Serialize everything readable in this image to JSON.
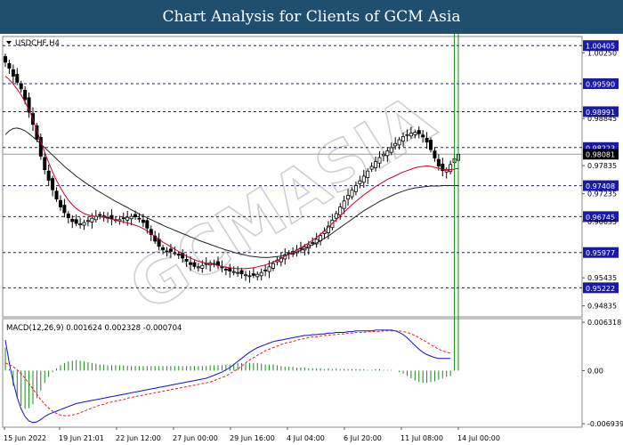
{
  "page": {
    "title": "Chart Analysis for Clients of GCM Asia",
    "watermark": "GCMASIA"
  },
  "chart_data": [
    {
      "type": "candlestick",
      "symbol_label": "USDCHF,H4",
      "ylim": [
        0.946,
        1.006
      ],
      "y_ticks": [
        1.0025,
        0.98845,
        0.97835,
        0.97235,
        0.96635,
        0.95435,
        0.94835
      ],
      "x_ticks": [
        "15 Jun 2022",
        "19 Jun 21:01",
        "22 Jun 12:00",
        "27 Jun 00:00",
        "29 Jun 16:00",
        "4 Jul 04:00",
        "6 Jul 20:00",
        "11 Jul 08:00",
        "14 Jul 00:00"
      ],
      "levels": [
        1.00405,
        0.9959,
        0.98991,
        0.98223,
        0.97408,
        0.96745,
        0.95977,
        0.95222
      ],
      "current_price": 0.98081,
      "colors": {
        "up": "#ffffff",
        "down": "#000000",
        "wick": "#000000",
        "ma_fast": "#c8002a",
        "ma_slow": "#222222",
        "level_line": "#1a1aa8",
        "level_box": "#1a1aa8",
        "price_box": "#000000"
      },
      "close": [
        1.0005,
        0.9992,
        0.9975,
        0.9962,
        0.9948,
        0.9925,
        0.9898,
        0.9872,
        0.984,
        0.9804,
        0.9775,
        0.9752,
        0.9732,
        0.9712,
        0.9695,
        0.9683,
        0.9672,
        0.9664,
        0.966,
        0.9659,
        0.9662,
        0.9666,
        0.9671,
        0.9675,
        0.9677,
        0.9676,
        0.9673,
        0.967,
        0.9668,
        0.9668,
        0.967,
        0.9673,
        0.9675,
        0.9674,
        0.967,
        0.9662,
        0.965,
        0.9636,
        0.9622,
        0.9611,
        0.9604,
        0.9601,
        0.96,
        0.9597,
        0.9592,
        0.9586,
        0.9579,
        0.9572,
        0.9568,
        0.9567,
        0.957,
        0.9574,
        0.9575,
        0.9574,
        0.957,
        0.9565,
        0.9561,
        0.9558,
        0.9557,
        0.9555,
        0.9552,
        0.955,
        0.9548,
        0.9549,
        0.9551,
        0.9555,
        0.956,
        0.9567,
        0.9574,
        0.9581,
        0.9587,
        0.9593,
        0.9597,
        0.96,
        0.9603,
        0.9606,
        0.961,
        0.9614,
        0.9619,
        0.9626,
        0.9634,
        0.9643,
        0.9654,
        0.9667,
        0.9681,
        0.9695,
        0.9708,
        0.972,
        0.9731,
        0.9741,
        0.9751,
        0.9761,
        0.9772,
        0.9782,
        0.9792,
        0.9801,
        0.9808,
        0.9815,
        0.9822,
        0.9831,
        0.9839,
        0.9846,
        0.985,
        0.9853,
        0.9855,
        0.9852,
        0.9845,
        0.9834,
        0.9818,
        0.98,
        0.9783,
        0.9773,
        0.9774,
        0.9786,
        0.9798,
        0.9808
      ],
      "ma_fast": [
        0.9975,
        0.9968,
        0.9958,
        0.9947,
        0.9935,
        0.992,
        0.9903,
        0.9883,
        0.986,
        0.9835,
        0.9812,
        0.979,
        0.977,
        0.9752,
        0.9736,
        0.9722,
        0.971,
        0.97,
        0.9692,
        0.9686,
        0.9681,
        0.9678,
        0.9676,
        0.9675,
        0.9674,
        0.9673,
        0.9671,
        0.9669,
        0.9667,
        0.9665,
        0.9663,
        0.9661,
        0.9659,
        0.9656,
        0.9653,
        0.9649,
        0.9644,
        0.9638,
        0.9632,
        0.9626,
        0.962,
        0.9615,
        0.961,
        0.9605,
        0.96,
        0.9595,
        0.959,
        0.9586,
        0.9582,
        0.9579,
        0.9577,
        0.9575,
        0.9574,
        0.9572,
        0.957,
        0.9568,
        0.9566,
        0.9565,
        0.9564,
        0.9563,
        0.9563,
        0.9563,
        0.9564,
        0.9565,
        0.9567,
        0.9569,
        0.9571,
        0.9574,
        0.9577,
        0.9581,
        0.9585,
        0.959,
        0.9594,
        0.9598,
        0.9603,
        0.9608,
        0.9613,
        0.9618,
        0.9624,
        0.963,
        0.9637,
        0.9644,
        0.9652,
        0.966,
        0.9668,
        0.9676,
        0.9684,
        0.9692,
        0.97,
        0.9707,
        0.9714,
        0.9721,
        0.9727,
        0.9733,
        0.9739,
        0.9744,
        0.9749,
        0.9754,
        0.9758,
        0.9762,
        0.9766,
        0.977,
        0.9773,
        0.9776,
        0.9779,
        0.9781,
        0.9782,
        0.9783,
        0.9782,
        0.978,
        0.9778,
        0.9776,
        0.9775,
        0.9775,
        0.9776,
        0.9778
      ],
      "ma_slow": [
        0.985,
        0.9858,
        0.9863,
        0.9864,
        0.9862,
        0.9858,
        0.9852,
        0.9845,
        0.9838,
        0.983,
        0.9822,
        0.9814,
        0.9806,
        0.9798,
        0.979,
        0.9782,
        0.9775,
        0.9768,
        0.9761,
        0.9755,
        0.9749,
        0.9743,
        0.9738,
        0.9732,
        0.9727,
        0.9722,
        0.9717,
        0.9712,
        0.9707,
        0.9703,
        0.9698,
        0.9694,
        0.9689,
        0.9685,
        0.968,
        0.9676,
        0.9672,
        0.9668,
        0.9664,
        0.966,
        0.9656,
        0.9652,
        0.9649,
        0.9645,
        0.9642,
        0.9638,
        0.9635,
        0.9631,
        0.9628,
        0.9624,
        0.9621,
        0.9618,
        0.9615,
        0.9612,
        0.9609,
        0.9606,
        0.9603,
        0.9601,
        0.9598,
        0.9596,
        0.9594,
        0.9592,
        0.959,
        0.9589,
        0.9588,
        0.9587,
        0.9587,
        0.9587,
        0.9588,
        0.9589,
        0.959,
        0.9592,
        0.9594,
        0.9596,
        0.9599,
        0.9602,
        0.9606,
        0.961,
        0.9614,
        0.9618,
        0.9623,
        0.9628,
        0.9633,
        0.9639,
        0.9645,
        0.9651,
        0.9657,
        0.9663,
        0.9669,
        0.9675,
        0.9681,
        0.9687,
        0.9692,
        0.9697,
        0.9702,
        0.9707,
        0.9711,
        0.9715,
        0.9719,
        0.9723,
        0.9726,
        0.9729,
        0.9732,
        0.9734,
        0.9736,
        0.9737,
        0.9738,
        0.9739,
        0.974,
        0.974,
        0.974,
        0.9741,
        0.9741,
        0.9741,
        0.9741,
        0.9741
      ]
    },
    {
      "type": "macd",
      "label": "MACD(12,26,9) 0.001624 0.002328 -0.000704",
      "ylim": [
        -0.0074,
        0.0068
      ],
      "y_ticks": [
        "0.006318",
        "0.00",
        "-0.006939"
      ],
      "y_tick_values": [
        0.006318,
        0.0,
        -0.006939
      ],
      "colors": {
        "macd": "#1010c8",
        "signal": "#e02020",
        "hist": "#1a8a1a"
      },
      "macd": [
        0.004,
        0.001,
        -0.0015,
        -0.0035,
        -0.005,
        -0.006,
        -0.0066,
        -0.0068,
        -0.0067,
        -0.0064,
        -0.006,
        -0.0057,
        -0.0055,
        -0.0053,
        -0.0051,
        -0.0049,
        -0.0047,
        -0.0045,
        -0.0043,
        -0.0042,
        -0.0041,
        -0.004,
        -0.0039,
        -0.0038,
        -0.0037,
        -0.0036,
        -0.0035,
        -0.0034,
        -0.0033,
        -0.0032,
        -0.0031,
        -0.003,
        -0.0029,
        -0.0028,
        -0.0027,
        -0.0026,
        -0.0025,
        -0.0024,
        -0.0023,
        -0.0022,
        -0.0021,
        -0.002,
        -0.0019,
        -0.0018,
        -0.0017,
        -0.0016,
        -0.0015,
        -0.0014,
        -0.0013,
        -0.0012,
        -0.0011,
        -0.001,
        -0.0008,
        -0.0006,
        -0.0004,
        -0.0002,
        0.0001,
        0.0004,
        0.0008,
        0.0012,
        0.0016,
        0.002,
        0.0024,
        0.0027,
        0.003,
        0.0032,
        0.0034,
        0.0036,
        0.0038,
        0.0039,
        0.004,
        0.0041,
        0.0042,
        0.0043,
        0.0044,
        0.0045,
        0.0046,
        0.0046,
        0.0047,
        0.0047,
        0.0048,
        0.0048,
        0.0049,
        0.0049,
        0.005,
        0.005,
        0.005,
        0.0051,
        0.0051,
        0.0052,
        0.0052,
        0.0052,
        0.0052,
        0.0052,
        0.0053,
        0.0053,
        0.0053,
        0.0053,
        0.0053,
        0.0052,
        0.005,
        0.0047,
        0.0043,
        0.0038,
        0.0033,
        0.0028,
        0.0024,
        0.0021,
        0.0019,
        0.0017,
        0.0016,
        0.0016,
        0.0016,
        0.0016
      ],
      "signal": [
        0.001,
        0.0008,
        0.0005,
        0.0001,
        -0.0004,
        -0.001,
        -0.0017,
        -0.0024,
        -0.0031,
        -0.0038,
        -0.0044,
        -0.0049,
        -0.0053,
        -0.0056,
        -0.0058,
        -0.0059,
        -0.0059,
        -0.0058,
        -0.0057,
        -0.0055,
        -0.0053,
        -0.0051,
        -0.0049,
        -0.0047,
        -0.0045,
        -0.0044,
        -0.0042,
        -0.0041,
        -0.004,
        -0.0039,
        -0.0038,
        -0.0036,
        -0.0035,
        -0.0034,
        -0.0033,
        -0.0032,
        -0.0031,
        -0.003,
        -0.0029,
        -0.0028,
        -0.0027,
        -0.0026,
        -0.0025,
        -0.0024,
        -0.0023,
        -0.0022,
        -0.0021,
        -0.002,
        -0.0019,
        -0.0018,
        -0.0017,
        -0.0016,
        -0.0015,
        -0.0013,
        -0.0011,
        -0.0009,
        -0.0007,
        -0.0004,
        -0.0001,
        0.0002,
        0.0006,
        0.001,
        0.0014,
        0.0017,
        0.002,
        0.0023,
        0.0026,
        0.0028,
        0.003,
        0.0032,
        0.0034,
        0.0036,
        0.0037,
        0.0038,
        0.004,
        0.0041,
        0.0042,
        0.0043,
        0.0044,
        0.0044,
        0.0045,
        0.0046,
        0.0046,
        0.0047,
        0.0047,
        0.0048,
        0.0048,
        0.0049,
        0.0049,
        0.005,
        0.005,
        0.005,
        0.0051,
        0.0051,
        0.0051,
        0.0051,
        0.0052,
        0.0052,
        0.0052,
        0.0052,
        0.0052,
        0.0051,
        0.005,
        0.0048,
        0.0046,
        0.0043,
        0.004,
        0.0037,
        0.0034,
        0.0031,
        0.0028,
        0.0026,
        0.0024,
        0.0023
      ]
    }
  ]
}
